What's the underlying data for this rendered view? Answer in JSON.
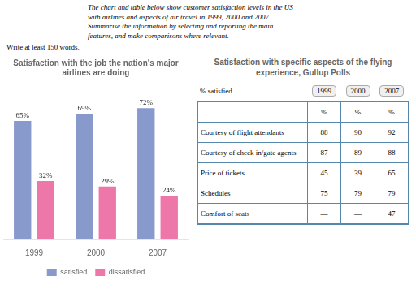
{
  "chart_data": [
    {
      "type": "bar",
      "title": "Satisfaction with the job the nation's major\nairlines are doing",
      "annotations": [
        "The chart and table below show customer satisfaction levels in the US",
        "with airlines and aspects of air travel in 1999, 2000 and 2007.",
        "Summarise the information by selecting and reporting the main",
        "features, and make comparisons where relevant.",
        "Write at least 150 words."
      ],
      "categories": [
        "1999",
        "2000",
        "2007"
      ],
      "series": [
        {
          "name": "satisfied",
          "color": "#8899cc",
          "values": [
            65,
            69,
            72
          ],
          "value_labels": [
            "65%",
            "69%",
            "72%"
          ]
        },
        {
          "name": "dissatisfied",
          "color": "#ee77aa",
          "values": [
            32,
            29,
            24
          ],
          "value_labels": [
            "32%",
            "29%",
            "24%"
          ]
        }
      ],
      "ylim": [
        0,
        85
      ],
      "tick_labels": "x",
      "data_labels": true,
      "legend": "bottom",
      "grid": false
    },
    {
      "type": "table",
      "title": "Satisfaction with specific aspects of the flying\nexperience, Gullup Polls",
      "corner_label": "% satisfied",
      "units": [
        "%",
        "%",
        "%"
      ],
      "color": "#5588aa",
      "categories": [
        "Courtesy of flight attendants",
        "Courtesy of check in/gate agents",
        "Price of tickets",
        "Schedules",
        "Comfort of seats"
      ],
      "series": [
        {
          "name": "1999",
          "values": [
            88,
            87,
            45,
            75,
            null
          ],
          "value_labels": [
            "88",
            "87",
            "45",
            "75",
            "—"
          ]
        },
        {
          "name": "2000",
          "values": [
            90,
            89,
            39,
            79,
            null
          ],
          "value_labels": [
            "90",
            "89",
            "39",
            "79",
            "—"
          ]
        },
        {
          "name": "2007",
          "values": [
            92,
            88,
            65,
            79,
            47
          ]
        }
      ]
    }
  ]
}
